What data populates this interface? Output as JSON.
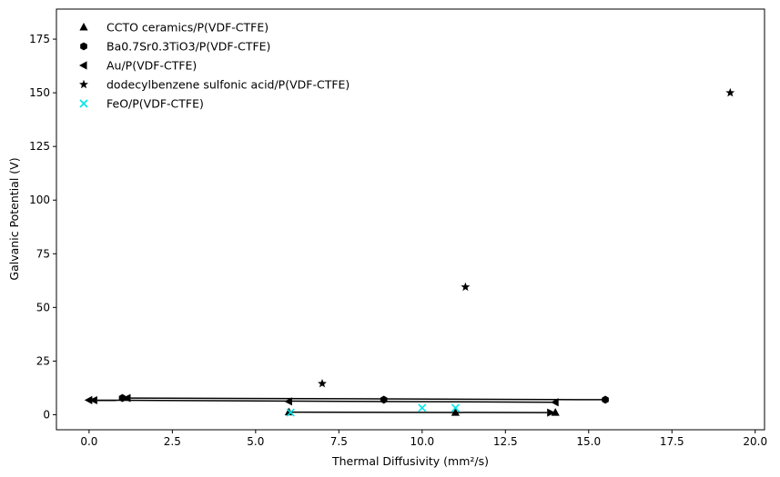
{
  "chart_data": {
    "type": "scatter",
    "xlabel": "Thermal Diffusivity (mm²/s)",
    "ylabel": "Galvanic Potential (V)",
    "xlim": [
      -0.98,
      20.28
    ],
    "ylim": [
      -7,
      189
    ],
    "xticks": [
      0.0,
      2.5,
      5.0,
      7.5,
      10.0,
      12.5,
      15.0,
      17.5,
      20.0
    ],
    "xtick_labels": [
      "0.0",
      "2.5",
      "5.0",
      "7.5",
      "10.0",
      "12.5",
      "15.0",
      "17.5",
      "20.0"
    ],
    "yticks": [
      0,
      25,
      50,
      75,
      100,
      125,
      150,
      175
    ],
    "ytick_labels": [
      "0",
      "25",
      "50",
      "75",
      "100",
      "125",
      "150",
      "175"
    ],
    "grid": false,
    "legend_position": "top-left",
    "series": [
      {
        "name": "CCTO ceramics/P(VDF-CTFE)",
        "marker": "triangle-up",
        "color": "#000000",
        "points": [
          [
            6.0,
            1.2
          ],
          [
            11.0,
            1.0
          ],
          [
            14.0,
            1.0
          ]
        ],
        "arrow": {
          "from": [
            6.0,
            1.2
          ],
          "to": [
            14.0,
            1.0
          ]
        }
      },
      {
        "name": "Ba0.7Sr0.3TiO3/P(VDF-CTFE)",
        "marker": "hexagon",
        "color": "#000000",
        "points": [
          [
            1.0,
            7.8
          ],
          [
            8.85,
            7.0
          ],
          [
            15.5,
            7.0
          ]
        ],
        "arrow": {
          "from": [
            15.5,
            7.0
          ],
          "to": [
            1.0,
            7.8
          ]
        }
      },
      {
        "name": "Au/P(VDF-CTFE)",
        "marker": "triangle-left",
        "color": "#000000",
        "points": [
          [
            0.0,
            6.8
          ],
          [
            6.0,
            6.2
          ],
          [
            14.0,
            5.8
          ]
        ],
        "arrow": {
          "from": [
            14.0,
            5.8
          ],
          "to": [
            0.0,
            6.8
          ]
        }
      },
      {
        "name": "dodecylbenzene sulfonic acid/P(VDF-CTFE)",
        "marker": "star",
        "color": "#000000",
        "points": [
          [
            7.0,
            14.5
          ],
          [
            11.3,
            59.5
          ],
          [
            19.25,
            150.0
          ]
        ]
      },
      {
        "name": "FeO/P(VDF-CTFE)",
        "marker": "x",
        "color": "#00e5e5",
        "points": [
          [
            6.05,
            1.0
          ],
          [
            10.0,
            3.2
          ],
          [
            11.0,
            3.2
          ]
        ]
      }
    ]
  }
}
